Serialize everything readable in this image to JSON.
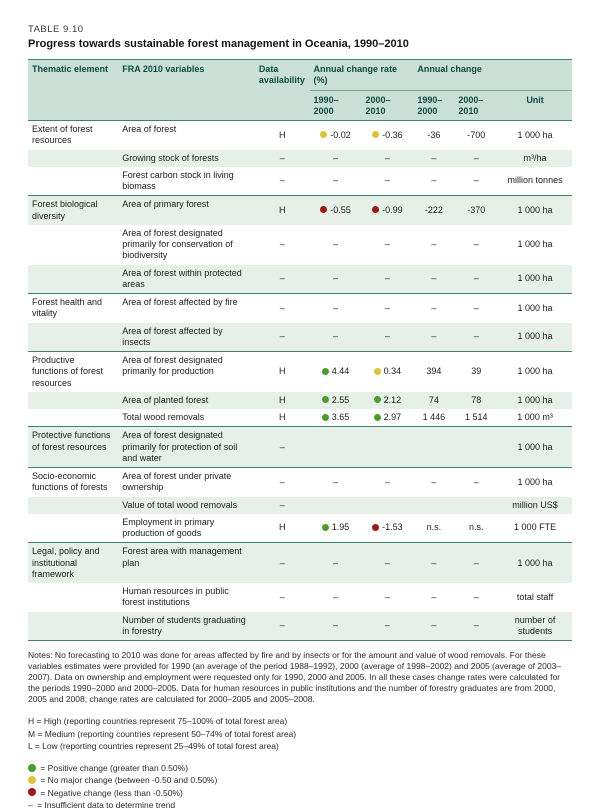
{
  "document": {
    "table_label": "TABLE 9.10",
    "title": "Progress towards sustainable forest management in Oceania, 1990–2010"
  },
  "colors": {
    "positive": "#4d9a2e",
    "no_change": "#ddc13c",
    "negative": "#9a1b10",
    "header_bg": "#cadfd5",
    "row_shade": "#e6f0e9",
    "rule": "#417f6f"
  },
  "table": {
    "headers": {
      "thematic": "Thematic element",
      "variables": "FRA 2010 variables",
      "availability": "Data availability",
      "rate_group": "Annual change rate (%)",
      "change_group": "Annual change",
      "rate_period1": "1990–2000",
      "rate_period2": "2000–2010",
      "change_period1": "1990–2000",
      "change_period2": "2000–2010",
      "unit": "Unit"
    },
    "groups": [
      {
        "theme": "Extent of forest resources",
        "rows": [
          {
            "variable": "Area of forest",
            "availability": "H",
            "rate1": {
              "dot": "no_change",
              "value": "-0.02"
            },
            "rate2": {
              "dot": "no_change",
              "value": "-0.36"
            },
            "change1": "-36",
            "change2": "-700",
            "unit": "1 000 ha"
          },
          {
            "variable": "Growing stock of forests",
            "availability": "–",
            "rate1": {
              "dot": null,
              "value": "–"
            },
            "rate2": {
              "dot": null,
              "value": "–"
            },
            "change1": "–",
            "change2": "–",
            "unit": "m³/ha"
          },
          {
            "variable": "Forest carbon stock in living biomass",
            "availability": "–",
            "rate1": {
              "dot": null,
              "value": "–"
            },
            "rate2": {
              "dot": null,
              "value": "–"
            },
            "change1": "–",
            "change2": "–",
            "unit": "million tonnes"
          }
        ]
      },
      {
        "theme": "Forest biological diversity",
        "rows": [
          {
            "variable": "Area of primary forest",
            "availability": "H",
            "rate1": {
              "dot": "negative",
              "value": "-0.55"
            },
            "rate2": {
              "dot": "negative",
              "value": "-0.99"
            },
            "change1": "-222",
            "change2": "-370",
            "unit": "1 000 ha"
          },
          {
            "variable": "Area of forest designated primarily for conservation of biodiversity",
            "availability": "–",
            "rate1": {
              "dot": null,
              "value": "–"
            },
            "rate2": {
              "dot": null,
              "value": "–"
            },
            "change1": "–",
            "change2": "–",
            "unit": "1 000 ha"
          },
          {
            "variable": "Area of forest within protected areas",
            "availability": "–",
            "rate1": {
              "dot": null,
              "value": "–"
            },
            "rate2": {
              "dot": null,
              "value": "–"
            },
            "change1": "–",
            "change2": "–",
            "unit": "1 000 ha"
          }
        ]
      },
      {
        "theme": "Forest health and vitality",
        "rows": [
          {
            "variable": "Area of forest affected by fire",
            "availability": "–",
            "rate1": {
              "dot": null,
              "value": "–"
            },
            "rate2": {
              "dot": null,
              "value": "–"
            },
            "change1": "–",
            "change2": "–",
            "unit": "1 000 ha"
          },
          {
            "variable": "Area of forest affected by insects",
            "availability": "–",
            "rate1": {
              "dot": null,
              "value": "–"
            },
            "rate2": {
              "dot": null,
              "value": "–"
            },
            "change1": "–",
            "change2": "–",
            "unit": "1 000 ha"
          }
        ]
      },
      {
        "theme": "Productive functions of forest resources",
        "rows": [
          {
            "variable": "Area of forest designated primarily for production",
            "availability": "H",
            "rate1": {
              "dot": "positive",
              "value": "4.44"
            },
            "rate2": {
              "dot": "no_change",
              "value": "0.34"
            },
            "change1": "394",
            "change2": "39",
            "unit": "1 000 ha"
          },
          {
            "variable": "Area of planted forest",
            "availability": "H",
            "rate1": {
              "dot": "positive",
              "value": "2.55"
            },
            "rate2": {
              "dot": "positive",
              "value": "2.12"
            },
            "change1": "74",
            "change2": "78",
            "unit": "1 000 ha"
          },
          {
            "variable": "Total wood removals",
            "availability": "H",
            "rate1": {
              "dot": "positive",
              "value": "3.65"
            },
            "rate2": {
              "dot": "positive",
              "value": "2.97"
            },
            "change1": "1 446",
            "change2": "1 514",
            "unit": "1 000 m³"
          }
        ]
      },
      {
        "theme": "Protective functions of forest resources",
        "rows": [
          {
            "variable": "Area of forest designated primarily for protection of soil and water",
            "availability": "–",
            "rate1": {
              "dot": null,
              "value": ""
            },
            "rate2": {
              "dot": null,
              "value": ""
            },
            "change1": "",
            "change2": "",
            "unit": "1 000 ha"
          }
        ]
      },
      {
        "theme": "Socio-economic functions of forests",
        "rows": [
          {
            "variable": "Area of forest under private ownership",
            "availability": "–",
            "rate1": {
              "dot": null,
              "value": "–"
            },
            "rate2": {
              "dot": null,
              "value": "–"
            },
            "change1": "–",
            "change2": "–",
            "unit": "1 000 ha"
          },
          {
            "variable": "Value of total wood removals",
            "availability": "–",
            "rate1": {
              "dot": null,
              "value": ""
            },
            "rate2": {
              "dot": null,
              "value": ""
            },
            "change1": "",
            "change2": "",
            "unit": "million US$"
          },
          {
            "variable": "Employment in primary production of goods",
            "availability": "H",
            "rate1": {
              "dot": "positive",
              "value": "1.95"
            },
            "rate2": {
              "dot": "negative",
              "value": "-1.53"
            },
            "change1": "n.s.",
            "change2": "n.s.",
            "unit": "1 000 FTE"
          }
        ]
      },
      {
        "theme": "Legal, policy and institutional framework",
        "rows": [
          {
            "variable": "Forest area with management plan",
            "availability": "–",
            "rate1": {
              "dot": null,
              "value": "–"
            },
            "rate2": {
              "dot": null,
              "value": "–"
            },
            "change1": "–",
            "change2": "–",
            "unit": "1 000 ha"
          },
          {
            "variable": "Human resources in public forest institutions",
            "availability": "–",
            "rate1": {
              "dot": null,
              "value": "–"
            },
            "rate2": {
              "dot": null,
              "value": "–"
            },
            "change1": "–",
            "change2": "–",
            "unit": "total staff"
          },
          {
            "variable": "Number of students graduating in forestry",
            "availability": "–",
            "rate1": {
              "dot": null,
              "value": "–"
            },
            "rate2": {
              "dot": null,
              "value": "–"
            },
            "change1": "–",
            "change2": "–",
            "unit": "number of students"
          }
        ]
      }
    ]
  },
  "notes": "Notes: No forecasting to 2010 was done for areas affected by fire and by insects or for the amount and value of wood removals. For these variables estimates were provided for 1990 (an average of the period 1988–1992), 2000 (average of 1998–2002) and 2005 (average of 2003–2007). Data on ownership and employment were requested only for 1990, 2000 and 2005. In all these cases change rates were calculated for the periods 1990–2000 and 2000–2005. Data for human resources in public institutions and the number of forestry graduates are from 2000, 2005 and 2008; change rates are calculated for 2000–2005 and 2005–2008.",
  "availability_legend": [
    "H = High (reporting countries represent 75–100% of total forest area)",
    "M = Medium (reporting countries represent 50–74% of total forest area)",
    "L = Low (reporting countries represent 25–49% of total forest area)"
  ],
  "trend_legend": [
    {
      "marker": "positive",
      "text": "= Positive change (greater than 0.50%)"
    },
    {
      "marker": "no_change",
      "text": "= No major change (between -0.50 and 0.50%)"
    },
    {
      "marker": "negative",
      "text": "= Negative change (less than -0.50%)"
    },
    {
      "marker": "dash",
      "text": "= Insufficient data to determine trend"
    }
  ]
}
